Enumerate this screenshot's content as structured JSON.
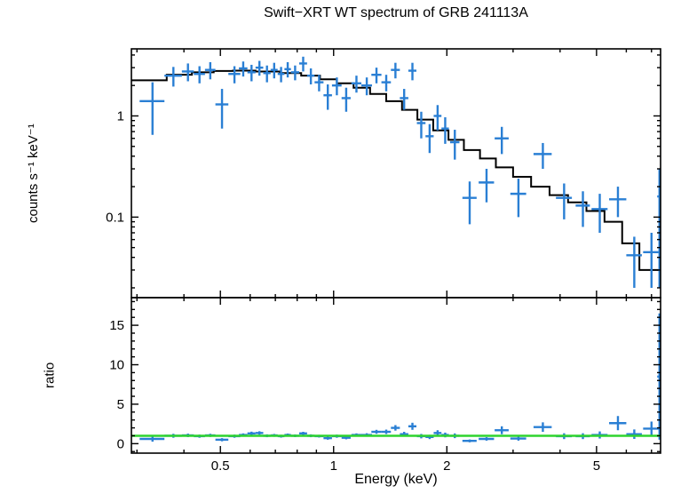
{
  "title": "Swift−XRT WT spectrum of GRB 241113A",
  "xlabel": "Energy (keV)",
  "colors": {
    "data": "#2a7fd4",
    "model": "#000000",
    "ratio_line": "#2fd42f",
    "axis": "#000000",
    "background": "#ffffff"
  },
  "chart_data": [
    {
      "name": "spectrum",
      "type": "scatter",
      "title": "Swift−XRT WT spectrum of GRB 241113A",
      "ylabel": "counts s⁻¹ keV⁻¹",
      "xscale": "log",
      "yscale": "log",
      "xlim": [
        0.29,
        7.4
      ],
      "ylim": [
        0.016,
        4.6
      ],
      "xticks": [
        0.5,
        1,
        2,
        5
      ],
      "xtick_labels": [
        "0.5",
        "1",
        "2",
        "5"
      ],
      "yticks": [
        0.1,
        1
      ],
      "ytick_labels": [
        "0.1",
        "1"
      ],
      "grid": false,
      "legend": "none",
      "columns": [
        "x",
        "xerr",
        "y",
        "yerr"
      ],
      "points": [
        [
          0.33,
          0.025,
          1.4,
          0.75
        ],
        [
          0.375,
          0.02,
          2.5,
          0.55
        ],
        [
          0.41,
          0.015,
          2.75,
          0.55
        ],
        [
          0.44,
          0.015,
          2.6,
          0.5
        ],
        [
          0.47,
          0.015,
          2.85,
          0.55
        ],
        [
          0.505,
          0.02,
          1.3,
          0.55
        ],
        [
          0.545,
          0.02,
          2.6,
          0.5
        ],
        [
          0.575,
          0.015,
          2.95,
          0.5
        ],
        [
          0.605,
          0.015,
          2.7,
          0.5
        ],
        [
          0.635,
          0.015,
          3.0,
          0.5
        ],
        [
          0.665,
          0.015,
          2.65,
          0.5
        ],
        [
          0.695,
          0.015,
          2.85,
          0.5
        ],
        [
          0.725,
          0.015,
          2.6,
          0.45
        ],
        [
          0.755,
          0.015,
          2.9,
          0.5
        ],
        [
          0.79,
          0.02,
          2.7,
          0.45
        ],
        [
          0.83,
          0.02,
          3.3,
          0.55
        ],
        [
          0.87,
          0.02,
          2.5,
          0.45
        ],
        [
          0.915,
          0.025,
          2.15,
          0.4
        ],
        [
          0.965,
          0.025,
          1.6,
          0.45
        ],
        [
          1.02,
          0.03,
          2.0,
          0.4
        ],
        [
          1.08,
          0.03,
          1.5,
          0.4
        ],
        [
          1.15,
          0.035,
          2.1,
          0.4
        ],
        [
          1.225,
          0.04,
          2.0,
          0.4
        ],
        [
          1.3,
          0.04,
          2.55,
          0.45
        ],
        [
          1.38,
          0.04,
          2.15,
          0.4
        ],
        [
          1.46,
          0.04,
          2.85,
          0.5
        ],
        [
          1.54,
          0.04,
          1.5,
          0.35
        ],
        [
          1.62,
          0.04,
          2.8,
          0.55
        ],
        [
          1.71,
          0.045,
          0.85,
          0.25
        ],
        [
          1.8,
          0.045,
          0.63,
          0.2
        ],
        [
          1.89,
          0.045,
          1.0,
          0.28
        ],
        [
          1.98,
          0.045,
          0.75,
          0.22
        ],
        [
          2.1,
          0.06,
          0.55,
          0.18
        ],
        [
          2.3,
          0.1,
          0.155,
          0.07
        ],
        [
          2.55,
          0.12,
          0.22,
          0.08
        ],
        [
          2.8,
          0.12,
          0.6,
          0.18
        ],
        [
          3.1,
          0.15,
          0.17,
          0.07
        ],
        [
          3.6,
          0.2,
          0.42,
          0.12
        ],
        [
          4.1,
          0.2,
          0.155,
          0.06
        ],
        [
          4.6,
          0.2,
          0.13,
          0.05
        ],
        [
          5.1,
          0.25,
          0.12,
          0.05
        ],
        [
          5.7,
          0.3,
          0.15,
          0.05
        ],
        [
          6.3,
          0.3,
          0.042,
          0.022
        ],
        [
          7.0,
          0.35,
          0.045,
          0.025
        ],
        [
          7.35,
          0.1,
          0.16,
          0.14
        ]
      ],
      "model_steps": {
        "columns": [
          "e_lo",
          "e_hi",
          "value"
        ],
        "bins": [
          [
            0.29,
            0.36,
            2.25
          ],
          [
            0.36,
            0.42,
            2.55
          ],
          [
            0.42,
            0.48,
            2.7
          ],
          [
            0.48,
            0.54,
            2.78
          ],
          [
            0.54,
            0.62,
            2.8
          ],
          [
            0.62,
            0.72,
            2.75
          ],
          [
            0.72,
            0.82,
            2.65
          ],
          [
            0.82,
            0.92,
            2.5
          ],
          [
            0.92,
            1.02,
            2.3
          ],
          [
            1.02,
            1.13,
            2.1
          ],
          [
            1.13,
            1.25,
            1.9
          ],
          [
            1.25,
            1.38,
            1.65
          ],
          [
            1.38,
            1.52,
            1.4
          ],
          [
            1.52,
            1.67,
            1.15
          ],
          [
            1.67,
            1.84,
            0.92
          ],
          [
            1.84,
            2.02,
            0.72
          ],
          [
            2.02,
            2.22,
            0.58
          ],
          [
            2.22,
            2.45,
            0.46
          ],
          [
            2.45,
            2.7,
            0.38
          ],
          [
            2.7,
            3.0,
            0.31
          ],
          [
            3.0,
            3.35,
            0.25
          ],
          [
            3.35,
            3.75,
            0.2
          ],
          [
            3.75,
            4.2,
            0.165
          ],
          [
            4.2,
            4.7,
            0.14
          ],
          [
            4.7,
            5.25,
            0.115
          ],
          [
            5.25,
            5.85,
            0.09
          ],
          [
            5.85,
            6.5,
            0.055
          ],
          [
            6.5,
            7.4,
            0.03
          ]
        ]
      }
    },
    {
      "name": "ratio",
      "type": "scatter",
      "ylabel": "ratio",
      "xscale": "log",
      "yscale": "linear",
      "xlim": [
        0.29,
        7.4
      ],
      "ylim": [
        -1.2,
        18.5
      ],
      "xticks": [
        0.5,
        1,
        2,
        5
      ],
      "xtick_labels": [
        "0.5",
        "1",
        "2",
        "5"
      ],
      "yticks": [
        0,
        5,
        10,
        15
      ],
      "ytick_labels": [
        "0",
        "5",
        "10",
        "15"
      ],
      "reference_line": 1.0,
      "grid": false,
      "legend": "none",
      "columns": [
        "x",
        "xerr",
        "y",
        "yerr"
      ],
      "points": [
        [
          0.33,
          0.025,
          0.6,
          0.35
        ],
        [
          0.375,
          0.02,
          1.0,
          0.25
        ],
        [
          0.41,
          0.015,
          1.05,
          0.22
        ],
        [
          0.44,
          0.015,
          0.95,
          0.2
        ],
        [
          0.47,
          0.015,
          1.05,
          0.2
        ],
        [
          0.505,
          0.02,
          0.5,
          0.2
        ],
        [
          0.545,
          0.02,
          0.95,
          0.2
        ],
        [
          0.575,
          0.015,
          1.1,
          0.2
        ],
        [
          0.605,
          0.015,
          1.3,
          0.22
        ],
        [
          0.635,
          0.015,
          1.35,
          0.22
        ],
        [
          0.665,
          0.015,
          1.0,
          0.18
        ],
        [
          0.695,
          0.015,
          1.05,
          0.18
        ],
        [
          0.725,
          0.015,
          0.95,
          0.18
        ],
        [
          0.755,
          0.015,
          1.1,
          0.18
        ],
        [
          0.79,
          0.02,
          1.0,
          0.17
        ],
        [
          0.83,
          0.02,
          1.3,
          0.2
        ],
        [
          0.87,
          0.02,
          1.0,
          0.18
        ],
        [
          0.915,
          0.025,
          0.95,
          0.17
        ],
        [
          0.965,
          0.025,
          0.7,
          0.2
        ],
        [
          1.02,
          0.03,
          0.95,
          0.2
        ],
        [
          1.08,
          0.03,
          0.75,
          0.2
        ],
        [
          1.15,
          0.035,
          1.1,
          0.2
        ],
        [
          1.225,
          0.04,
          1.1,
          0.22
        ],
        [
          1.3,
          0.04,
          1.5,
          0.25
        ],
        [
          1.38,
          0.04,
          1.5,
          0.28
        ],
        [
          1.46,
          0.04,
          2.0,
          0.35
        ],
        [
          1.54,
          0.04,
          1.2,
          0.3
        ],
        [
          1.62,
          0.04,
          2.2,
          0.45
        ],
        [
          1.71,
          0.045,
          0.95,
          0.28
        ],
        [
          1.8,
          0.045,
          0.85,
          0.27
        ],
        [
          1.89,
          0.045,
          1.35,
          0.35
        ],
        [
          1.98,
          0.045,
          1.1,
          0.3
        ],
        [
          2.1,
          0.06,
          1.0,
          0.3
        ],
        [
          2.3,
          0.1,
          0.35,
          0.18
        ],
        [
          2.55,
          0.12,
          0.6,
          0.22
        ],
        [
          2.8,
          0.12,
          1.7,
          0.5
        ],
        [
          3.1,
          0.15,
          0.65,
          0.27
        ],
        [
          3.6,
          0.2,
          2.1,
          0.6
        ],
        [
          4.1,
          0.2,
          0.95,
          0.37
        ],
        [
          4.6,
          0.2,
          0.95,
          0.37
        ],
        [
          5.1,
          0.25,
          1.1,
          0.45
        ],
        [
          5.7,
          0.3,
          2.6,
          0.9
        ],
        [
          6.3,
          0.3,
          1.2,
          0.6
        ],
        [
          7.0,
          0.35,
          1.9,
          0.9
        ],
        [
          7.35,
          0.1,
          8.5,
          8.0
        ]
      ]
    }
  ]
}
